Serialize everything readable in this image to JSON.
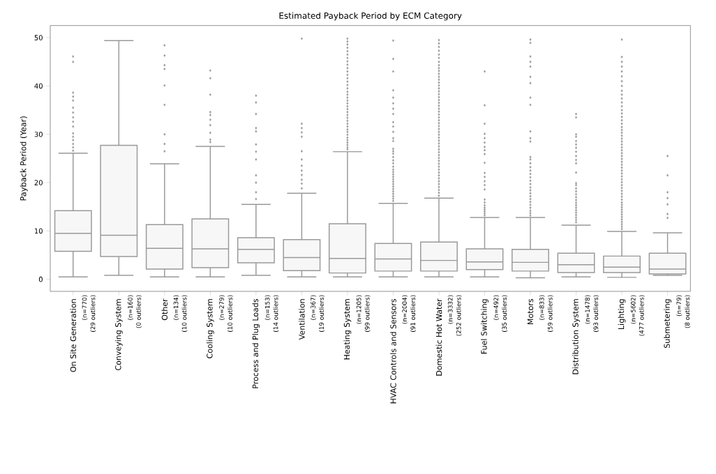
{
  "chart_data": {
    "type": "box",
    "title": "Estimated Payback Period by ECM Category",
    "ylabel": "Payback Period (Year)",
    "categories": [
      "On Site Generation",
      "Conveying System",
      "Other",
      "Cooling System",
      "Process and Plug Loads",
      "Ventilation",
      "Heating System",
      "HVAC Controls and Sensors",
      "Domestic Hot Water",
      "Fuel Switching",
      "Motors",
      "Distribution System",
      "Lighting",
      "Submetering"
    ],
    "ylim": [
      -2.5,
      52.5
    ],
    "yticks": [
      0,
      10,
      20,
      30,
      40,
      50
    ],
    "marker": "diamond",
    "series": [
      {
        "color": "#999999",
        "boxes": [
          {
            "low": 0.5,
            "q1": 5.8,
            "median": 9.5,
            "q3": 14.2,
            "high": 26.1,
            "outliers": [
              46.1,
              45.0,
              38.6,
              37.8,
              37.0,
              35.5,
              34.5,
              33.5,
              32.6,
              31.6,
              30.2,
              29.5,
              28.8,
              28.0,
              27.3,
              26.6
            ]
          },
          {
            "low": 0.8,
            "q1": 4.7,
            "median": 9.1,
            "q3": 27.7,
            "high": 49.4
          },
          {
            "low": 0.5,
            "q1": 2.1,
            "median": 6.4,
            "q3": 11.3,
            "high": 23.9,
            "outliers": [
              48.4,
              46.3,
              44.3,
              43.5,
              40.1,
              36.1,
              30.0,
              28.0,
              26.5
            ]
          },
          {
            "low": 0.5,
            "q1": 2.4,
            "median": 6.3,
            "q3": 12.5,
            "high": 27.5,
            "outliers": [
              43.2,
              41.6,
              38.2,
              34.6,
              34.0,
              33.0,
              31.9,
              30.3,
              28.9,
              28.4
            ]
          },
          {
            "low": 0.8,
            "q1": 3.4,
            "median": 6.2,
            "q3": 8.6,
            "high": 15.5,
            "outliers": [
              38.0,
              36.6,
              34.2,
              31.3,
              30.6,
              27.9,
              26.4,
              24.8,
              21.5,
              20.0,
              18.0,
              16.6
            ]
          },
          {
            "low": 0.5,
            "q1": 1.8,
            "median": 4.5,
            "q3": 8.2,
            "high": 17.8,
            "outliers": [
              49.8,
              32.2,
              31.3,
              30.4,
              29.5,
              26.5,
              24.8,
              23.5,
              22.5,
              21.6,
              20.6,
              19.8,
              18.8
            ]
          },
          {
            "low": 0.5,
            "q1": 1.3,
            "median": 4.3,
            "q3": 11.5,
            "high": 26.4,
            "outliers": [
              26.9,
              27.3,
              27.8,
              28.3,
              28.8,
              29.3,
              29.9,
              30.5,
              31.0,
              31.6,
              32.2,
              32.8,
              33.4,
              34.0,
              34.6,
              35.2,
              35.8,
              36.4,
              37.0,
              37.6,
              38.2,
              38.8,
              39.5,
              40.2,
              40.9,
              41.6,
              42.3,
              43.0,
              43.7,
              44.4,
              45.1,
              45.8,
              46.5,
              47.2,
              47.9,
              48.6,
              49.2,
              49.8
            ]
          },
          {
            "low": 0.5,
            "q1": 1.7,
            "median": 4.2,
            "q3": 7.4,
            "high": 15.7,
            "outliers": [
              16.2,
              16.7,
              17.2,
              17.7,
              18.2,
              18.7,
              19.2,
              19.7,
              20.2,
              20.7,
              21.2,
              21.7,
              22.2,
              22.7,
              23.3,
              24.0,
              24.6,
              25.3,
              26.0,
              26.5,
              27.0,
              28.6,
              29.2,
              30.5,
              31.6,
              32.5,
              34.2,
              35.3,
              36.4,
              37.6,
              39.1,
              43.0,
              45.6,
              49.4
            ]
          },
          {
            "low": 0.5,
            "q1": 1.7,
            "median": 3.9,
            "q3": 7.7,
            "high": 16.8,
            "outliers": [
              17.3,
              17.9,
              18.5,
              19.1,
              19.7,
              20.3,
              20.9,
              21.5,
              22.1,
              22.7,
              23.3,
              23.9,
              24.5,
              25.1,
              25.7,
              26.3,
              26.9,
              27.5,
              28.1,
              28.7,
              29.3,
              29.9,
              30.5,
              31.1,
              31.7,
              32.3,
              32.9,
              33.5,
              34.1,
              34.7,
              35.3,
              35.9,
              36.5,
              37.1,
              37.7,
              38.3,
              38.9,
              39.5,
              40.1,
              40.7,
              41.3,
              41.9,
              42.5,
              43.1,
              43.7,
              44.3,
              45.0,
              45.8,
              46.5,
              47.3,
              48.1,
              48.8,
              49.5
            ]
          },
          {
            "low": 0.5,
            "q1": 2.0,
            "median": 3.6,
            "q3": 6.3,
            "high": 12.8,
            "outliers": [
              13.2,
              13.6,
              14.0,
              14.4,
              14.8,
              15.3,
              15.9,
              16.5,
              18.6,
              19.5,
              20.3,
              21.2,
              22.0,
              24.1,
              25.9,
              26.7,
              27.4,
              28.3,
              29.2,
              30.1,
              32.2,
              36.0,
              43.0
            ]
          },
          {
            "low": 0.3,
            "q1": 1.7,
            "median": 3.5,
            "q3": 6.2,
            "high": 12.8,
            "outliers": [
              13.2,
              13.7,
              14.2,
              14.8,
              15.4,
              16.0,
              16.6,
              17.2,
              17.8,
              18.4,
              19.0,
              19.7,
              20.4,
              21.1,
              21.8,
              22.5,
              23.2,
              24.0,
              24.8,
              25.3,
              28.5,
              29.2,
              30.6,
              36.1,
              37.6,
              40.6,
              41.9,
              44.0,
              45.0,
              46.1,
              48.9,
              49.6
            ]
          },
          {
            "low": 0.5,
            "q1": 1.4,
            "median": 3.0,
            "q3": 5.4,
            "high": 11.2,
            "outliers": [
              11.8,
              12.3,
              12.8,
              13.3,
              13.8,
              14.3,
              14.8,
              15.3,
              15.8,
              16.4,
              17.0,
              17.6,
              18.2,
              18.8,
              19.5,
              19.9,
              22.1,
              24.0,
              24.7,
              25.5,
              26.4,
              27.2,
              27.9,
              28.6,
              29.5,
              30.0,
              33.5,
              34.2
            ]
          },
          {
            "low": 0.4,
            "q1": 1.4,
            "median": 2.5,
            "q3": 4.8,
            "high": 9.9,
            "outliers": [
              10.4,
              10.9,
              11.4,
              11.9,
              12.4,
              12.9,
              13.4,
              13.9,
              14.4,
              14.9,
              15.4,
              15.9,
              16.5,
              17.1,
              17.7,
              18.3,
              18.9,
              19.5,
              20.1,
              20.7,
              21.3,
              21.9,
              22.5,
              23.1,
              23.7,
              24.3,
              24.9,
              25.5,
              26.1,
              26.7,
              27.3,
              27.9,
              28.5,
              29.1,
              29.7,
              30.3,
              30.9,
              31.5,
              32.2,
              32.9,
              33.6,
              34.3,
              35.0,
              35.8,
              36.6,
              37.4,
              38.2,
              39.0,
              40.0,
              41.0,
              42.0,
              43.0,
              44.0,
              45.0,
              46.0,
              49.6
            ]
          },
          {
            "low": 0.8,
            "q1": 1.1,
            "median": 2.1,
            "q3": 5.4,
            "high": 9.6,
            "outliers": [
              25.5,
              21.5,
              18.0,
              16.8,
              15.5,
              13.5,
              12.7
            ]
          }
        ]
      }
    ],
    "annotations": [
      "(n=770)",
      "(29 outliers)",
      "(n=160)",
      "(0 outliers)",
      "(n=134)",
      "(10 outliers)",
      "(n=279)",
      "(10 outliers)",
      "(n=153)",
      "(14 outliers)",
      "(n=367)",
      "(19 outliers)",
      "(n=1205)",
      "(99 outliers)",
      "(n=2004)",
      "(91 outliers)",
      "(n=3332)",
      "(252 outliers)",
      "(n=492)",
      "(35 outliers)",
      "(n=833)",
      "(59 outliers)",
      "(n=1478)",
      "(93 outliers)",
      "(n=5602)",
      "(477 outliers)",
      "(n=79)",
      "(8 outliers)"
    ]
  }
}
